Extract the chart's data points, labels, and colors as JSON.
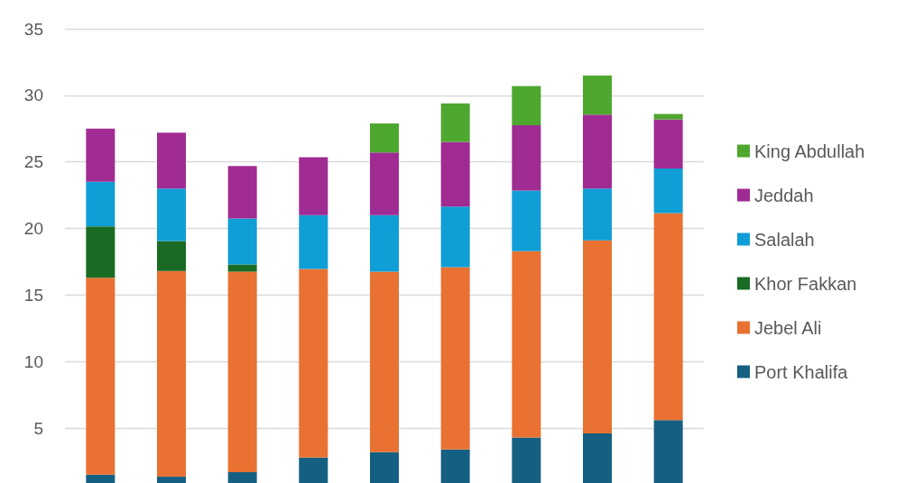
{
  "chart_data": {
    "type": "bar",
    "stacked": true,
    "categories": [
      null,
      null,
      null,
      null,
      null,
      null,
      null,
      null,
      null
    ],
    "series": [
      {
        "name": "Port Khalifa",
        "color": "#156082",
        "values": [
          1.5,
          1.35,
          1.7,
          2.8,
          3.2,
          3.4,
          4.3,
          4.6,
          5.6
        ]
      },
      {
        "name": "Jebel Ali",
        "color": "#e97132",
        "values": [
          14.8,
          15.45,
          15.05,
          14.15,
          13.55,
          13.7,
          14.0,
          14.5,
          15.55
        ]
      },
      {
        "name": "Khor Fakkan",
        "color": "#196b24",
        "values": [
          3.85,
          2.25,
          0.55,
          0,
          0,
          0,
          0,
          0,
          0
        ]
      },
      {
        "name": "Salalah",
        "color": "#0f9ed5",
        "values": [
          3.35,
          3.95,
          3.45,
          4.05,
          4.25,
          4.55,
          4.55,
          3.9,
          3.35
        ]
      },
      {
        "name": "Jeddah",
        "color": "#a02b93",
        "values": [
          4.0,
          4.2,
          3.95,
          4.35,
          4.7,
          4.85,
          4.9,
          5.55,
          3.7
        ]
      },
      {
        "name": "King Abdullah",
        "color": "#4ea72e",
        "values": [
          0,
          0,
          0,
          0,
          2.2,
          2.9,
          2.95,
          2.95,
          0.4
        ]
      }
    ],
    "ylim": [
      0,
      35
    ],
    "yticks": [
      5,
      10,
      15,
      20,
      25,
      30,
      35
    ],
    "grid": "y",
    "legend": "right"
  }
}
